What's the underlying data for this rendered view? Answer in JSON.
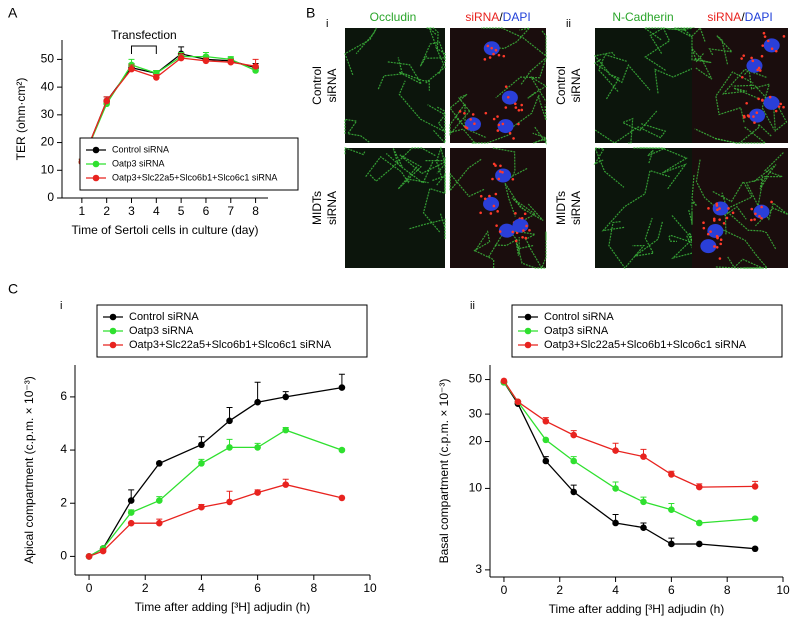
{
  "panels": {
    "a": "A",
    "b": "B",
    "c": "C",
    "b_i": "i",
    "b_ii": "ii",
    "c_i": "i",
    "c_ii": "ii"
  },
  "micrographs": {
    "i": {
      "stain": "Occludin",
      "overlay": [
        "siRNA",
        "/",
        "DAPI"
      ]
    },
    "ii": {
      "stain": "N-Cadherin",
      "overlay": [
        "siRNA",
        "/",
        "DAPI"
      ]
    },
    "row_labels": [
      [
        "Control",
        "siRNA"
      ],
      [
        "MIDTs",
        "siRNA"
      ]
    ]
  },
  "chart_data": [
    {
      "type": "line",
      "x": [
        1,
        2,
        3,
        4,
        5,
        6,
        7,
        8
      ],
      "xlim": [
        0.2,
        8.5
      ],
      "xticks": [
        1,
        2,
        3,
        4,
        5,
        6,
        7,
        8
      ],
      "ylim": [
        0,
        57
      ],
      "yticks": [
        0,
        10,
        20,
        30,
        40,
        50
      ],
      "xlabel": "Time of Sertoli cells in culture (day)",
      "ylabel": "TER (ohm·cm²)",
      "legend": "lower right",
      "annotation": {
        "text": "Transfection",
        "x": [
          3,
          4
        ]
      },
      "series": [
        {
          "name": "Control siRNA",
          "color": "#000000",
          "values": [
            13,
            35,
            47,
            45,
            52,
            50,
            49.5,
            47
          ],
          "errors": [
            1,
            1.5,
            1.5,
            1,
            2.5,
            1,
            1,
            1.5
          ]
        },
        {
          "name": "Oatp3 siRNA",
          "color": "#2fe02f",
          "values": [
            13,
            34,
            48,
            45,
            51,
            51,
            50,
            46
          ],
          "errors": [
            1,
            1,
            2,
            1,
            1.5,
            1.5,
            1,
            1
          ]
        },
        {
          "name": "Oatp3+Slc22a5+Slco6b1+Slco6c1 siRNA",
          "color": "#e8231f",
          "values": [
            13,
            35,
            46.5,
            43.5,
            50.5,
            49.5,
            49,
            47.5
          ],
          "errors": [
            1,
            1.5,
            1.5,
            1,
            1.5,
            1,
            1,
            2.5
          ]
        }
      ]
    },
    {
      "type": "line",
      "x": [
        0,
        0.5,
        1.5,
        2.5,
        4,
        5,
        6,
        7,
        9
      ],
      "xlim": [
        -0.5,
        10
      ],
      "xticks": [
        0,
        2,
        4,
        6,
        8,
        10
      ],
      "ylim": [
        -0.7,
        7.2
      ],
      "yticks": [
        0,
        2,
        4,
        6
      ],
      "xlabel": "Time after adding [³H] adjudin (h)",
      "ylabel": "Apical compartment (c.p.m. × 10⁻³)",
      "legend": "top",
      "series": [
        {
          "name": "Control siRNA",
          "color": "#000000",
          "values": [
            0,
            0.3,
            2.1,
            3.5,
            4.2,
            5.1,
            5.8,
            6.0,
            6.35
          ],
          "errors": [
            0,
            0,
            0.4,
            0.05,
            0.3,
            0.5,
            0.75,
            0.2,
            0.5
          ]
        },
        {
          "name": "Oatp3 siRNA",
          "color": "#2fe02f",
          "values": [
            0,
            0.3,
            1.65,
            2.1,
            3.5,
            4.1,
            4.1,
            4.75,
            4.0
          ],
          "errors": [
            0,
            0,
            0.1,
            0.15,
            0.15,
            0.3,
            0.15,
            0.1,
            0.05
          ]
        },
        {
          "name": "Oatp3+Slc22a5+Slco6b1+Slco6c1 siRNA",
          "color": "#e8231f",
          "values": [
            0,
            0.2,
            1.25,
            1.25,
            1.85,
            2.05,
            2.4,
            2.7,
            2.2
          ],
          "errors": [
            0,
            0,
            0,
            0.15,
            0.1,
            0.4,
            0.1,
            0.2,
            0
          ]
        }
      ]
    },
    {
      "type": "line",
      "x": [
        0,
        0.5,
        1.5,
        2.5,
        4,
        5,
        6,
        7,
        9
      ],
      "xlim": [
        -0.5,
        10
      ],
      "xticks": [
        0,
        2,
        4,
        6,
        8,
        10
      ],
      "log": true,
      "ylim": [
        2.7,
        62
      ],
      "yticks": [
        3,
        10,
        20,
        30,
        50
      ],
      "xlabel": "Time after adding [³H] adjudin (h)",
      "ylabel": "Basal compartment (c.p.m. × 10⁻³)",
      "legend": "top",
      "series": [
        {
          "name": "Control siRNA",
          "color": "#000000",
          "values": [
            48,
            35,
            15,
            9.5,
            6,
            5.6,
            4.4,
            4.4,
            4.1
          ],
          "errors": [
            0,
            0,
            1,
            1,
            0.8,
            0.4,
            0.4,
            0,
            0
          ]
        },
        {
          "name": "Oatp3 siRNA",
          "color": "#2fe02f",
          "values": [
            48,
            36,
            20.5,
            15,
            10,
            8.2,
            7.3,
            6,
            6.4
          ],
          "errors": [
            0,
            0,
            0,
            1,
            1,
            0.6,
            0.7,
            0,
            0
          ]
        },
        {
          "name": "Oatp3+Slc22a5+Slco6b1+Slco6c1 siRNA",
          "color": "#e8231f",
          "values": [
            49,
            36,
            27,
            22,
            17.5,
            16,
            12.3,
            10.2,
            10.3
          ],
          "errors": [
            0,
            0,
            1.5,
            1.5,
            2,
            1.8,
            0.6,
            0.5,
            0.8
          ]
        }
      ]
    }
  ]
}
